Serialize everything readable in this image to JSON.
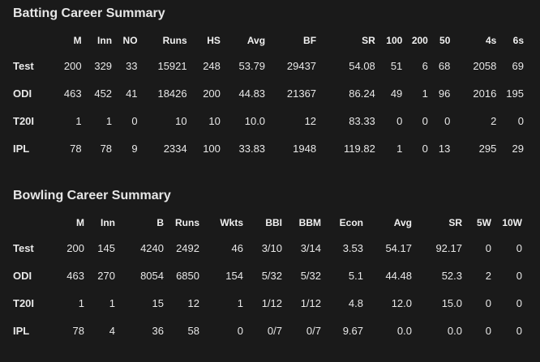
{
  "batting": {
    "title": "Batting Career Summary",
    "headers": [
      "",
      "M",
      "Inn",
      "NO",
      "Runs",
      "HS",
      "Avg",
      "BF",
      "SR",
      "100",
      "200",
      "50",
      "4s",
      "6s"
    ],
    "rows": [
      [
        "Test",
        "200",
        "329",
        "33",
        "15921",
        "248",
        "53.79",
        "29437",
        "54.08",
        "51",
        "6",
        "68",
        "2058",
        "69"
      ],
      [
        "ODI",
        "463",
        "452",
        "41",
        "18426",
        "200",
        "44.83",
        "21367",
        "86.24",
        "49",
        "1",
        "96",
        "2016",
        "195"
      ],
      [
        "T20I",
        "1",
        "1",
        "0",
        "10",
        "10",
        "10.0",
        "12",
        "83.33",
        "0",
        "0",
        "0",
        "2",
        "0"
      ],
      [
        "IPL",
        "78",
        "78",
        "9",
        "2334",
        "100",
        "33.83",
        "1948",
        "119.82",
        "1",
        "0",
        "13",
        "295",
        "29"
      ]
    ]
  },
  "bowling": {
    "title": "Bowling Career Summary",
    "headers": [
      "",
      "M",
      "Inn",
      "B",
      "Runs",
      "Wkts",
      "BBI",
      "BBM",
      "Econ",
      "Avg",
      "SR",
      "5W",
      "10W"
    ],
    "rows": [
      [
        "Test",
        "200",
        "145",
        "4240",
        "2492",
        "46",
        "3/10",
        "3/14",
        "3.53",
        "54.17",
        "92.17",
        "0",
        "0"
      ],
      [
        "ODI",
        "463",
        "270",
        "8054",
        "6850",
        "154",
        "5/32",
        "5/32",
        "5.1",
        "44.48",
        "52.3",
        "2",
        "0"
      ],
      [
        "T20I",
        "1",
        "1",
        "15",
        "12",
        "1",
        "1/12",
        "1/12",
        "4.8",
        "12.0",
        "15.0",
        "0",
        "0"
      ],
      [
        "IPL",
        "78",
        "4",
        "36",
        "58",
        "0",
        "0/7",
        "0/7",
        "9.67",
        "0.0",
        "0.0",
        "0",
        "0"
      ]
    ]
  }
}
